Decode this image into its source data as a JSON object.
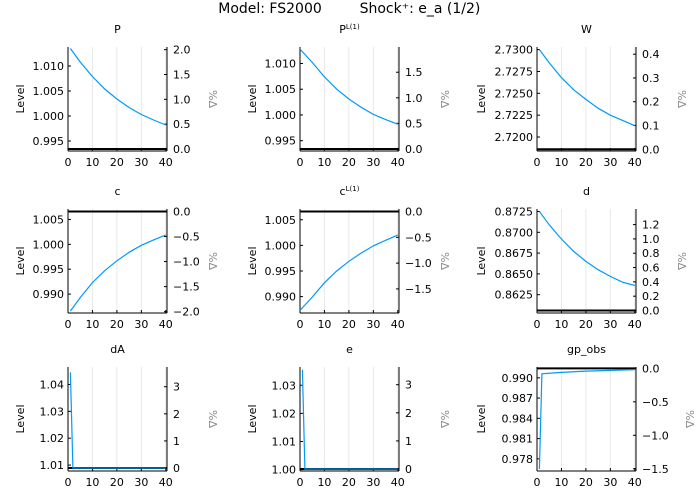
{
  "title_model": "Model: FS2000",
  "title_shock": "Shock⁺: e_a  (1/2)",
  "colors": {
    "series": "#009af9",
    "steady_state": "#000000",
    "grid": "#e8e8e8",
    "right_label": "#8c8c8c"
  },
  "chart_data": [
    {
      "type": "line",
      "title": "P",
      "title_sup": "",
      "ylabel": "Level",
      "ylabel_right": "%Δ",
      "steady_state": 0.9934,
      "ylim": [
        0.993,
        1.0138
      ],
      "xlim": [
        0,
        40.5
      ],
      "xticks": [
        0,
        10,
        20,
        30,
        40
      ],
      "grid": "x",
      "yticks": [
        0.995,
        1.0,
        1.005,
        1.01
      ],
      "yticklabels": [
        "0.995",
        "1.000",
        "1.005",
        "1.010"
      ],
      "rticks": [
        0,
        0.5,
        1.0,
        1.5,
        2.0
      ],
      "rticklabels": [
        "0.0",
        "0.5",
        "1.0",
        "1.5",
        "2.0"
      ],
      "x": [
        1,
        5,
        10,
        15,
        20,
        25,
        30,
        35,
        40
      ],
      "y": [
        1.0135,
        1.0108,
        1.0079,
        1.0054,
        1.0034,
        1.0017,
        1.0003,
        0.9992,
        0.9982
      ]
    },
    {
      "type": "line",
      "title": "P",
      "title_sup": "L(1)",
      "ylabel": "Level",
      "ylabel_right": "%Δ",
      "steady_state": 0.9934,
      "ylim": [
        0.993,
        1.0132
      ],
      "xlim": [
        0,
        40.5
      ],
      "xticks": [
        0,
        10,
        20,
        30,
        40
      ],
      "grid": "x",
      "yticks": [
        0.995,
        1.0,
        1.005,
        1.01
      ],
      "yticklabels": [
        "0.995",
        "1.000",
        "1.005",
        "1.010"
      ],
      "rticks": [
        0,
        0.5,
        1.0,
        1.5
      ],
      "rticklabels": [
        "0.0",
        "0.5",
        "1.0",
        "1.5"
      ],
      "x": [
        0,
        5,
        10,
        15,
        20,
        25,
        30,
        35,
        40
      ],
      "y": [
        1.0128,
        1.0102,
        1.0074,
        1.005,
        1.0031,
        1.0015,
        1.0001,
        0.9991,
        0.9982
      ]
    },
    {
      "type": "line",
      "title": "W",
      "title_sup": "",
      "ylabel": "Level",
      "ylabel_right": "%Δ",
      "steady_state": 2.7186,
      "ylim": [
        2.7184,
        2.7303
      ],
      "xlim": [
        0,
        40.5
      ],
      "xticks": [
        0,
        10,
        20,
        30,
        40
      ],
      "grid": "x",
      "yticks": [
        2.72,
        2.7225,
        2.725,
        2.7275,
        2.73
      ],
      "yticklabels": [
        "2.7200",
        "2.7225",
        "2.7250",
        "2.7275",
        "2.7300"
      ],
      "rticks": [
        0,
        0.1,
        0.2,
        0.3,
        0.4
      ],
      "rticklabels": [
        "0.0",
        "0.1",
        "0.2",
        "0.3",
        "0.4"
      ],
      "x": [
        1,
        5,
        10,
        15,
        20,
        25,
        30,
        35,
        40
      ],
      "y": [
        2.73,
        2.7285,
        2.7268,
        2.7254,
        2.7243,
        2.7233,
        2.7225,
        2.7219,
        2.7213
      ]
    },
    {
      "type": "line",
      "title": "c",
      "title_sup": "",
      "ylabel": "Level",
      "ylabel_right": "%Δ",
      "steady_state": 1.0066,
      "ylim": [
        0.9862,
        1.0071
      ],
      "xlim": [
        0,
        40.5
      ],
      "xticks": [
        0,
        10,
        20,
        30,
        40
      ],
      "grid": "x",
      "yticks": [
        0.99,
        0.995,
        1.0,
        1.005
      ],
      "yticklabels": [
        "0.990",
        "0.995",
        "1.000",
        "1.005"
      ],
      "rticks": [
        0,
        -0.5,
        -1.0,
        -1.5,
        -2.0
      ],
      "rticklabels": [
        "0.0",
        "−0.5",
        "−1.0",
        "−1.5",
        "−2.0"
      ],
      "x": [
        1,
        5,
        10,
        15,
        20,
        25,
        30,
        35,
        40
      ],
      "y": [
        0.9866,
        0.9893,
        0.9923,
        0.9947,
        0.9967,
        0.9984,
        0.9998,
        1.0009,
        1.0019
      ]
    },
    {
      "type": "line",
      "title": "c",
      "title_sup": "L(1)",
      "ylabel": "Level",
      "ylabel_right": "%Δ",
      "steady_state": 1.0066,
      "ylim": [
        0.9868,
        1.0071
      ],
      "xlim": [
        0,
        40.5
      ],
      "xticks": [
        0,
        10,
        20,
        30,
        40
      ],
      "grid": "x",
      "yticks": [
        0.99,
        0.995,
        1.0,
        1.005
      ],
      "yticklabels": [
        "0.990",
        "0.995",
        "1.000",
        "1.005"
      ],
      "rticks": [
        0,
        -0.5,
        -1.0,
        -1.5
      ],
      "rticklabels": [
        "0.0",
        "−0.5",
        "−1.0",
        "−1.5"
      ],
      "x": [
        0,
        5,
        10,
        15,
        20,
        25,
        30,
        35,
        40
      ],
      "y": [
        0.9873,
        0.9899,
        0.9927,
        0.995,
        0.9969,
        0.9985,
        0.9999,
        1.001,
        1.002
      ]
    },
    {
      "type": "line",
      "title": "d",
      "title_sup": "",
      "ylabel": "Level",
      "ylabel_right": "%Δ",
      "steady_state": 0.8606,
      "ylim": [
        0.8603,
        0.8728
      ],
      "xlim": [
        0,
        40.5
      ],
      "xticks": [
        0,
        10,
        20,
        30,
        40
      ],
      "grid": "x",
      "yticks": [
        0.8625,
        0.865,
        0.8675,
        0.87,
        0.8725
      ],
      "yticklabels": [
        "0.8625",
        "0.8650",
        "0.8675",
        "0.8700",
        "0.8725"
      ],
      "rticks": [
        0,
        0.2,
        0.4,
        0.6,
        0.8,
        1.0,
        1.2
      ],
      "rticklabels": [
        "0.0",
        "0.2",
        "0.4",
        "0.6",
        "0.8",
        "1.0",
        "1.2"
      ],
      "x": [
        1,
        5,
        10,
        15,
        20,
        25,
        30,
        35,
        40
      ],
      "y": [
        0.8725,
        0.8709,
        0.8692,
        0.8677,
        0.8665,
        0.8655,
        0.8647,
        0.864,
        0.8636
      ]
    },
    {
      "type": "line",
      "title": "dA",
      "title_sup": "",
      "ylabel": "Level",
      "ylabel_right": "%Δ",
      "steady_state": 1.0089,
      "ylim": [
        1.0078,
        1.0465
      ],
      "xlim": [
        0,
        40.5
      ],
      "xticks": [
        0,
        10,
        20,
        30,
        40
      ],
      "grid": "x",
      "yticks": [
        1.01,
        1.02,
        1.03,
        1.04
      ],
      "yticklabels": [
        "1.01",
        "1.02",
        "1.03",
        "1.04"
      ],
      "rticks": [
        0,
        1,
        2,
        3
      ],
      "rticklabels": [
        "0",
        "1",
        "2",
        "3"
      ],
      "x": [
        1,
        2,
        40
      ],
      "y": [
        1.0445,
        1.0089,
        1.0089
      ]
    },
    {
      "type": "line",
      "title": "e",
      "title_sup": "",
      "ylabel": "Level",
      "ylabel_right": "%Δ",
      "steady_state": 1.0002,
      "ylim": [
        0.9995,
        1.0365
      ],
      "xlim": [
        0,
        40.5
      ],
      "xticks": [
        0,
        10,
        20,
        30,
        40
      ],
      "grid": "x",
      "yticks": [
        1.0,
        1.01,
        1.02,
        1.03
      ],
      "yticklabels": [
        "1.00",
        "1.01",
        "1.02",
        "1.03"
      ],
      "rticks": [
        0,
        1,
        2,
        3
      ],
      "rticklabels": [
        "0",
        "1",
        "2",
        "3"
      ],
      "x": [
        1,
        2,
        40
      ],
      "y": [
        1.0355,
        1.0002,
        1.0002
      ]
    },
    {
      "type": "line",
      "title": "gp_obs",
      "title_sup": "",
      "ylabel": "Level",
      "ylabel_right": "%Δ",
      "steady_state": 0.9914,
      "ylim": [
        0.9762,
        0.9916
      ],
      "xlim": [
        0,
        40.5
      ],
      "xticks": [
        0,
        10,
        20,
        30,
        40
      ],
      "grid": "x",
      "yticks": [
        0.978,
        0.981,
        0.984,
        0.987,
        0.99
      ],
      "yticklabels": [
        "0.978",
        "0.981",
        "0.984",
        "0.987",
        "0.990"
      ],
      "rticks": [
        0,
        -0.5,
        -1.0,
        -1.5
      ],
      "rticklabels": [
        "0.0",
        "−0.5",
        "−1.0",
        "−1.5"
      ],
      "x": [
        1,
        2,
        10,
        20,
        30,
        40
      ],
      "y": [
        0.9765,
        0.9906,
        0.9908,
        0.991,
        0.9911,
        0.9912
      ]
    }
  ]
}
